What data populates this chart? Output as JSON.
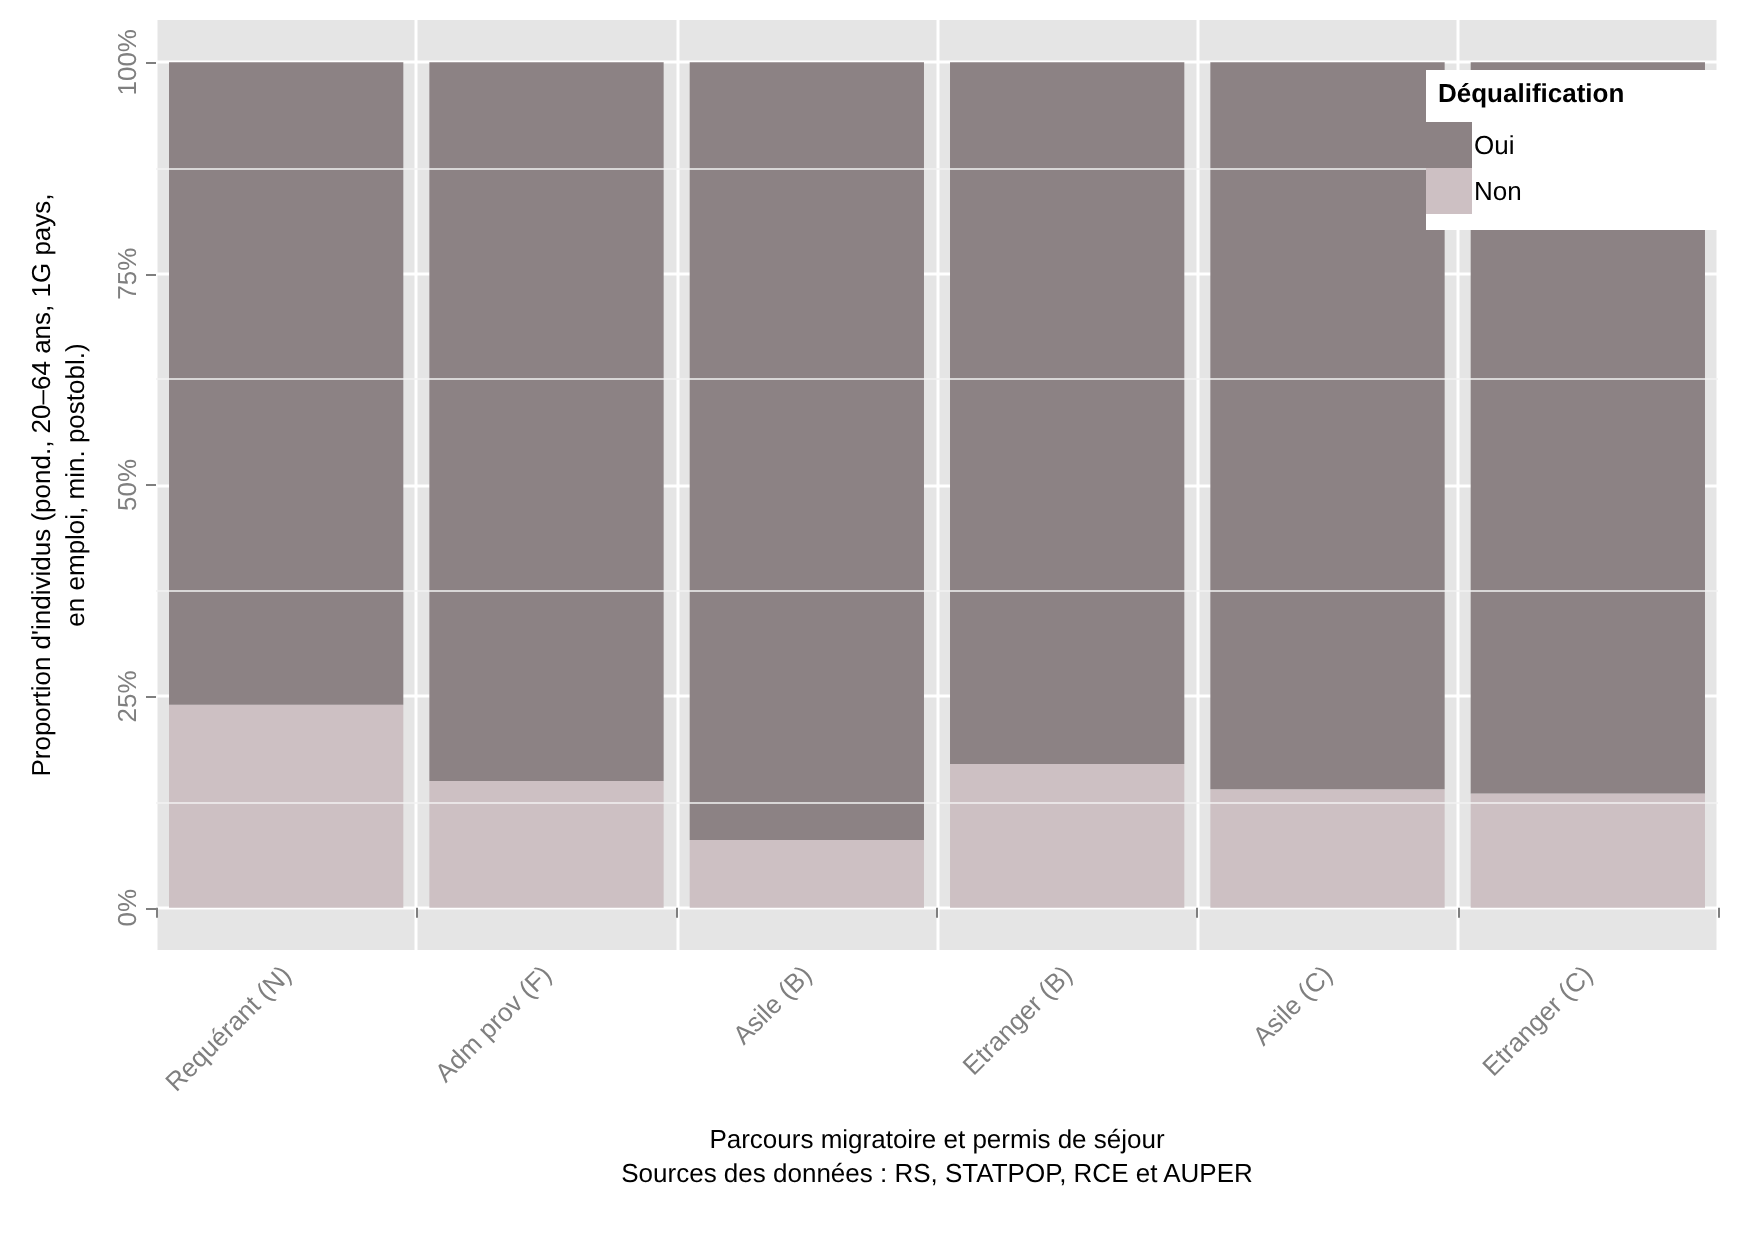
{
  "chart_data": {
    "type": "bar",
    "stacked": true,
    "categories": [
      "Requérant (N)",
      "Adm prov (F)",
      "Asile (B)",
      "Etranger (B)",
      "Asile (C)",
      "Etranger (C)"
    ],
    "series": [
      {
        "name": "Non",
        "color": "#cdc0c3",
        "values": [
          24,
          15,
          8,
          17,
          14,
          13.5
        ]
      },
      {
        "name": "Oui",
        "color": "#8c8284",
        "values": [
          76,
          85,
          92,
          83,
          86,
          86.5
        ]
      }
    ],
    "xlabel": "Parcours migratoire et permis de séjour",
    "ylabel": "Proportion d'individus (pond., 20–64 ans, 1G pays,\nen emploi, min. postobl.)",
    "legend_title": "Déqualification",
    "annotations": [
      "Sources des données : RS, STATPOP, RCE et AUPER"
    ],
    "ylim": [
      -5,
      105
    ],
    "yticks": [
      {
        "value": 0,
        "label": "0%"
      },
      {
        "value": 25,
        "label": "25%"
      },
      {
        "value": 50,
        "label": "50%"
      },
      {
        "value": 75,
        "label": "75%"
      },
      {
        "value": 100,
        "label": "100%"
      }
    ],
    "grid": true,
    "legend": "top right"
  }
}
